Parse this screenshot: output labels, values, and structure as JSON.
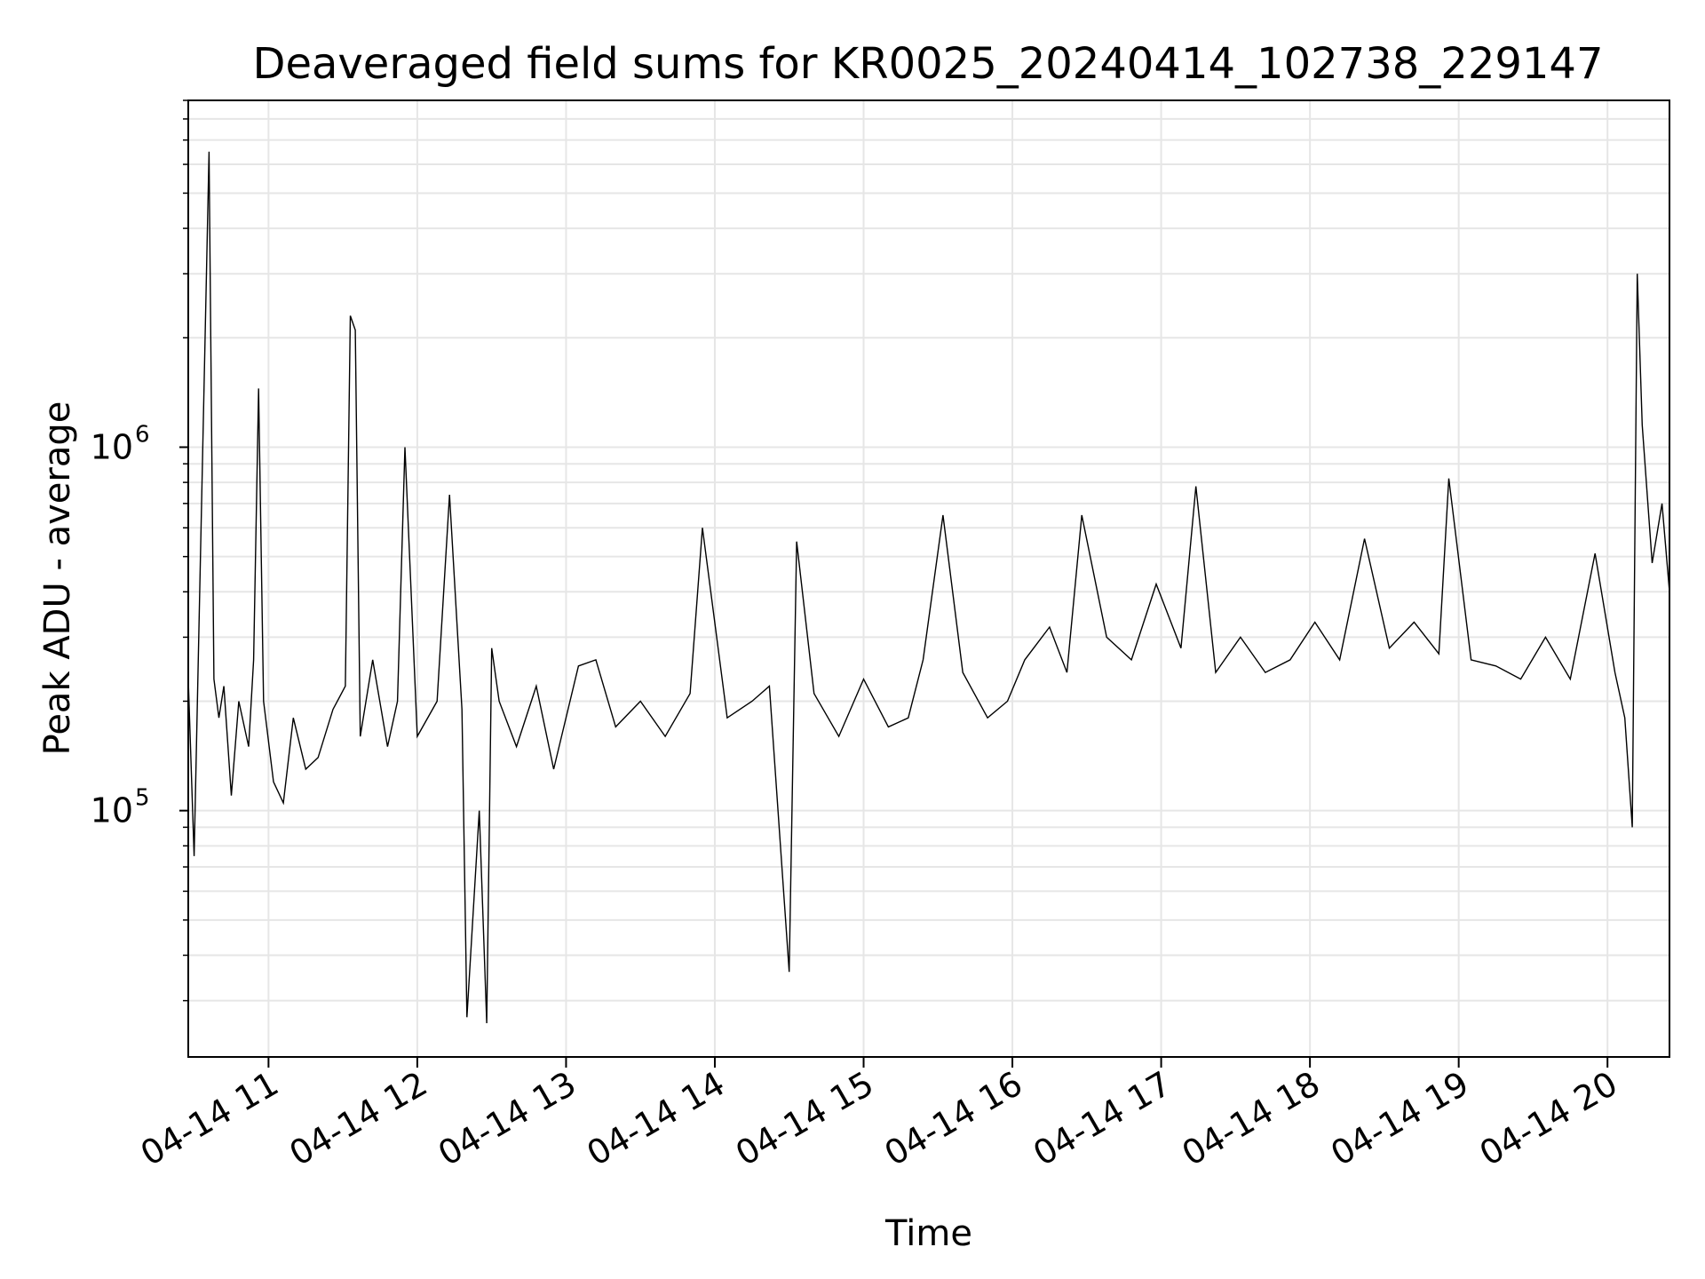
{
  "chart_data": {
    "type": "line",
    "title": "Deaveraged field sums for KR0025_20240414_102738_229147",
    "xlabel": "Time",
    "ylabel": "Peak ADU - average",
    "yscale": "log",
    "ylim": [
      21000,
      9000000
    ],
    "xlim": [
      "2024-04-14T10:27:38",
      "2024-04-14T20:25:00"
    ],
    "x_tick_labels": [
      "04-14 11",
      "04-14 12",
      "04-14 13",
      "04-14 14",
      "04-14 15",
      "04-14 16",
      "04-14 17",
      "04-14 18",
      "04-14 19",
      "04-14 20"
    ],
    "y_tick_labels": [
      {
        "base": "10",
        "exp": "5"
      },
      {
        "base": "10",
        "exp": "6"
      }
    ],
    "grid": true,
    "line_color": "#000000",
    "series": [
      {
        "x": [
          "2024-04-14T10:27:38",
          "2024-04-14T10:30:00",
          "2024-04-14T10:33:00",
          "2024-04-14T10:36:00",
          "2024-04-14T10:38:00",
          "2024-04-14T10:40:00",
          "2024-04-14T10:42:00",
          "2024-04-14T10:45:00",
          "2024-04-14T10:48:00",
          "2024-04-14T10:52:00",
          "2024-04-14T10:54:00",
          "2024-04-14T10:56:00",
          "2024-04-14T10:58:00",
          "2024-04-14T11:02:00",
          "2024-04-14T11:06:00",
          "2024-04-14T11:10:00",
          "2024-04-14T11:15:00",
          "2024-04-14T11:20:00",
          "2024-04-14T11:26:00",
          "2024-04-14T11:31:00",
          "2024-04-14T11:33:00",
          "2024-04-14T11:35:00",
          "2024-04-14T11:37:00",
          "2024-04-14T11:42:00",
          "2024-04-14T11:48:00",
          "2024-04-14T11:52:00",
          "2024-04-14T11:55:00",
          "2024-04-14T12:00:00",
          "2024-04-14T12:08:00",
          "2024-04-14T12:13:00",
          "2024-04-14T12:18:00",
          "2024-04-14T12:20:00",
          "2024-04-14T12:25:00",
          "2024-04-14T12:28:00",
          "2024-04-14T12:30:00",
          "2024-04-14T12:33:00",
          "2024-04-14T12:40:00",
          "2024-04-14T12:48:00",
          "2024-04-14T12:55:00",
          "2024-04-14T13:05:00",
          "2024-04-14T13:12:00",
          "2024-04-14T13:20:00",
          "2024-04-14T13:30:00",
          "2024-04-14T13:40:00",
          "2024-04-14T13:50:00",
          "2024-04-14T13:55:00",
          "2024-04-14T14:05:00",
          "2024-04-14T14:15:00",
          "2024-04-14T14:22:00",
          "2024-04-14T14:30:00",
          "2024-04-14T14:33:00",
          "2024-04-14T14:40:00",
          "2024-04-14T14:50:00",
          "2024-04-14T15:00:00",
          "2024-04-14T15:10:00",
          "2024-04-14T15:18:00",
          "2024-04-14T15:24:00",
          "2024-04-14T15:32:00",
          "2024-04-14T15:40:00",
          "2024-04-14T15:50:00",
          "2024-04-14T15:58:00",
          "2024-04-14T16:05:00",
          "2024-04-14T16:15:00",
          "2024-04-14T16:22:00",
          "2024-04-14T16:28:00",
          "2024-04-14T16:38:00",
          "2024-04-14T16:48:00",
          "2024-04-14T16:58:00",
          "2024-04-14T17:08:00",
          "2024-04-14T17:14:00",
          "2024-04-14T17:22:00",
          "2024-04-14T17:32:00",
          "2024-04-14T17:42:00",
          "2024-04-14T17:52:00",
          "2024-04-14T18:02:00",
          "2024-04-14T18:12:00",
          "2024-04-14T18:22:00",
          "2024-04-14T18:32:00",
          "2024-04-14T18:42:00",
          "2024-04-14T18:52:00",
          "2024-04-14T18:56:00",
          "2024-04-14T19:05:00",
          "2024-04-14T19:15:00",
          "2024-04-14T19:25:00",
          "2024-04-14T19:35:00",
          "2024-04-14T19:45:00",
          "2024-04-14T19:55:00",
          "2024-04-14T20:03:00",
          "2024-04-14T20:07:00",
          "2024-04-14T20:10:00",
          "2024-04-14T20:12:00",
          "2024-04-14T20:14:00",
          "2024-04-14T20:18:00",
          "2024-04-14T20:22:00",
          "2024-04-14T20:25:00"
        ],
        "y": [
          230000,
          75000,
          700000,
          6500000,
          230000,
          180000,
          220000,
          110000,
          200000,
          150000,
          260000,
          1450000,
          200000,
          120000,
          105000,
          180000,
          130000,
          140000,
          190000,
          220000,
          2300000,
          2100000,
          160000,
          260000,
          150000,
          200000,
          1000000,
          160000,
          200000,
          740000,
          190000,
          27000,
          100000,
          26000,
          280000,
          200000,
          150000,
          220000,
          130000,
          250000,
          260000,
          170000,
          200000,
          160000,
          210000,
          600000,
          180000,
          200000,
          220000,
          36000,
          550000,
          210000,
          160000,
          230000,
          170000,
          180000,
          260000,
          650000,
          240000,
          180000,
          200000,
          260000,
          320000,
          240000,
          650000,
          300000,
          260000,
          420000,
          280000,
          780000,
          240000,
          300000,
          240000,
          260000,
          330000,
          260000,
          560000,
          280000,
          330000,
          270000,
          820000,
          260000,
          250000,
          230000,
          300000,
          230000,
          510000,
          240000,
          180000,
          90000,
          3000000,
          1150000,
          480000,
          700000,
          400000
        ]
      }
    ]
  }
}
